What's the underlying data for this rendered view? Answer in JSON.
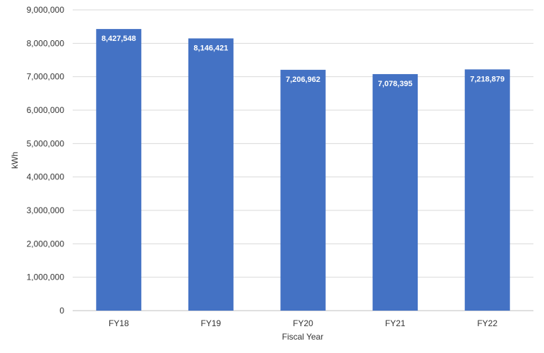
{
  "chart_data": {
    "type": "bar",
    "title": "",
    "xlabel": "Fiscal Year",
    "ylabel": "kWh",
    "categories": [
      "FY18",
      "FY19",
      "FY20",
      "FY21",
      "FY22"
    ],
    "values": [
      8427548,
      8146421,
      7206962,
      7078395,
      7218879
    ],
    "data_labels": [
      "8,427,548",
      "8,146,421",
      "7,206,962",
      "7,078,395",
      "7,218,879"
    ],
    "ylim": [
      0,
      9000000
    ],
    "yticks": [
      0,
      1000000,
      2000000,
      3000000,
      4000000,
      5000000,
      6000000,
      7000000,
      8000000,
      9000000
    ],
    "ytick_labels": [
      "0",
      "1,000,000",
      "2,000,000",
      "3,000,000",
      "4,000,000",
      "5,000,000",
      "6,000,000",
      "7,000,000",
      "8,000,000",
      "9,000,000"
    ],
    "grid": true,
    "legend": "none",
    "colors": {
      "bar": "#4472c4",
      "label": "#ffffff"
    }
  }
}
